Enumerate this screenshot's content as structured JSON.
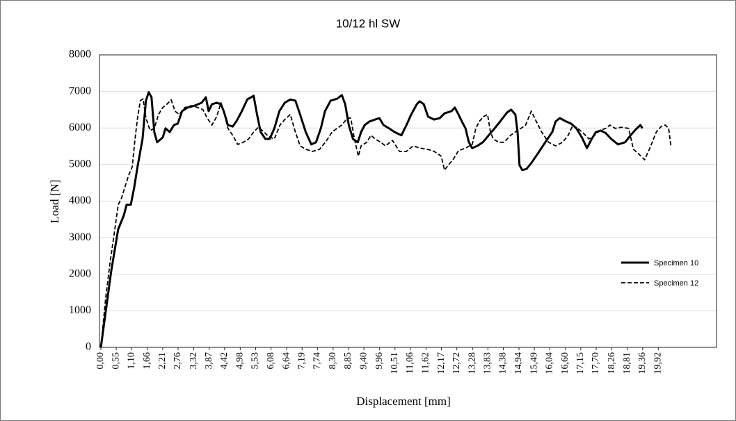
{
  "chart_data": {
    "type": "line",
    "title": "10/12 hl SW",
    "x_label": "Displacement [mm]",
    "y_label": "Load [N]",
    "xlim": [
      0,
      22
    ],
    "ylim": [
      0,
      8000
    ],
    "yticks": [
      0,
      1000,
      2000,
      3000,
      4000,
      5000,
      6000,
      7000,
      8000
    ],
    "xticks": [
      {
        "value": 0,
        "label": "0,00"
      },
      {
        "value": 0.55,
        "label": "0,55"
      },
      {
        "value": 1.1,
        "label": "1,10"
      },
      {
        "value": 1.66,
        "label": "1,66"
      },
      {
        "value": 2.21,
        "label": "2,21"
      },
      {
        "value": 2.76,
        "label": "2,76"
      },
      {
        "value": 3.32,
        "label": "3,32"
      },
      {
        "value": 3.87,
        "label": "3,87"
      },
      {
        "value": 4.42,
        "label": "4,42"
      },
      {
        "value": 4.98,
        "label": "4,98"
      },
      {
        "value": 5.53,
        "label": "5,53"
      },
      {
        "value": 6.08,
        "label": "6,08"
      },
      {
        "value": 6.64,
        "label": "6,64"
      },
      {
        "value": 7.19,
        "label": "7,19"
      },
      {
        "value": 7.74,
        "label": "7,74"
      },
      {
        "value": 8.3,
        "label": "8,30"
      },
      {
        "value": 8.85,
        "label": "8,85"
      },
      {
        "value": 9.4,
        "label": "9,40"
      },
      {
        "value": 9.96,
        "label": "9,96"
      },
      {
        "value": 10.51,
        "label": "10,51"
      },
      {
        "value": 11.06,
        "label": "11,06"
      },
      {
        "value": 11.62,
        "label": "11,62"
      },
      {
        "value": 12.17,
        "label": "12,17"
      },
      {
        "value": 12.72,
        "label": "12,72"
      },
      {
        "value": 13.28,
        "label": "13,28"
      },
      {
        "value": 13.83,
        "label": "13,83"
      },
      {
        "value": 14.38,
        "label": "14,38"
      },
      {
        "value": 14.94,
        "label": "14,94"
      },
      {
        "value": 15.49,
        "label": "15,49"
      },
      {
        "value": 16.04,
        "label": "16,04"
      },
      {
        "value": 16.6,
        "label": "16,60"
      },
      {
        "value": 17.15,
        "label": "17,15"
      },
      {
        "value": 17.7,
        "label": "17,70"
      },
      {
        "value": 18.26,
        "label": "18,26"
      },
      {
        "value": 18.81,
        "label": "18,81"
      },
      {
        "value": 19.36,
        "label": "19,36"
      },
      {
        "value": 19.92,
        "label": "19,92"
      }
    ],
    "grid": true,
    "legend_position": "right",
    "series": [
      {
        "name": "Specimen 10",
        "color": "#000000",
        "line_style": "solid",
        "x": [
          0,
          0.37,
          0.62,
          0.82,
          0.92,
          1.07,
          1.19,
          1.31,
          1.49,
          1.61,
          1.71,
          1.81,
          1.91,
          2.01,
          2.21,
          2.31,
          2.46,
          2.61,
          2.75,
          2.9,
          3.1,
          3.35,
          3.6,
          3.75,
          3.85,
          3.97,
          4.14,
          4.29,
          4.39,
          4.54,
          4.71,
          4.84,
          5.04,
          5.23,
          5.46,
          5.58,
          5.71,
          5.88,
          6.03,
          6.2,
          6.38,
          6.57,
          6.77,
          6.95,
          7.12,
          7.32,
          7.52,
          7.69,
          7.86,
          8.01,
          8.21,
          8.44,
          8.61,
          8.73,
          8.86,
          9.01,
          9.18,
          9.3,
          9.43,
          9.6,
          9.8,
          9.95,
          10.1,
          10.3,
          10.49,
          10.74,
          10.92,
          11.09,
          11.29,
          11.39,
          11.54,
          11.69,
          11.91,
          12.11,
          12.28,
          12.53,
          12.65,
          12.78,
          12.9,
          13.03,
          13.15,
          13.27,
          13.45,
          13.65,
          13.89,
          14.07,
          14.27,
          14.51,
          14.66,
          14.81,
          14.89,
          14.96,
          15.06,
          15.21,
          15.38,
          15.63,
          15.88,
          16.13,
          16.25,
          16.4,
          16.62,
          16.8,
          16.99,
          17.19,
          17.37,
          17.54,
          17.69,
          17.86,
          18.04,
          18.24,
          18.48,
          18.73,
          18.93,
          19.1,
          19.28,
          19.35
        ],
        "values": [
          0,
          2090,
          3230,
          3610,
          3900,
          3900,
          4370,
          4940,
          5700,
          6750,
          6980,
          6840,
          5890,
          5610,
          5740,
          5990,
          5890,
          6080,
          6120,
          6460,
          6560,
          6610,
          6690,
          6840,
          6460,
          6650,
          6690,
          6650,
          6460,
          6080,
          6040,
          6180,
          6460,
          6780,
          6880,
          6370,
          5890,
          5700,
          5700,
          5990,
          6460,
          6690,
          6780,
          6750,
          6370,
          5890,
          5550,
          5610,
          5990,
          6460,
          6750,
          6800,
          6900,
          6650,
          6080,
          5700,
          5610,
          5890,
          6080,
          6180,
          6230,
          6270,
          6080,
          5990,
          5890,
          5800,
          6080,
          6370,
          6650,
          6730,
          6650,
          6310,
          6230,
          6270,
          6400,
          6460,
          6560,
          6370,
          6180,
          5990,
          5610,
          5450,
          5510,
          5610,
          5830,
          5990,
          6180,
          6420,
          6500,
          6370,
          5890,
          4980,
          4850,
          4880,
          5040,
          5320,
          5610,
          5890,
          6180,
          6270,
          6180,
          6120,
          5990,
          5740,
          5450,
          5700,
          5890,
          5930,
          5860,
          5700,
          5550,
          5610,
          5800,
          5950,
          6080,
          5990
        ]
      },
      {
        "name": "Specimen 12",
        "color": "#000000",
        "line_style": "dashed",
        "x": [
          0,
          0.17,
          0.32,
          0.5,
          0.62,
          0.74,
          0.87,
          0.99,
          1.12,
          1.22,
          1.31,
          1.41,
          1.51,
          1.61,
          1.76,
          1.91,
          2.06,
          2.21,
          2.36,
          2.51,
          2.65,
          2.8,
          3.0,
          3.23,
          3.47,
          3.65,
          3.8,
          3.97,
          4.14,
          4.29,
          4.42,
          4.54,
          4.71,
          4.89,
          5.09,
          5.28,
          5.46,
          5.63,
          5.83,
          6.0,
          6.2,
          6.4,
          6.57,
          6.77,
          6.95,
          7.12,
          7.32,
          7.57,
          7.82,
          8.06,
          8.26,
          8.44,
          8.61,
          8.81,
          8.93,
          9.06,
          9.2,
          9.3,
          9.5,
          9.65,
          9.8,
          10.0,
          10.17,
          10.42,
          10.67,
          10.92,
          11.16,
          11.41,
          11.66,
          11.91,
          12.16,
          12.28,
          12.41,
          12.58,
          12.78,
          13.03,
          13.27,
          13.4,
          13.52,
          13.67,
          13.82,
          13.92,
          14.02,
          14.22,
          14.41,
          14.64,
          14.81,
          15.01,
          15.18,
          15.38,
          15.56,
          15.75,
          16.0,
          16.25,
          16.5,
          16.7,
          16.87,
          17.04,
          17.24,
          17.44,
          17.64,
          17.84,
          18.04,
          18.19,
          18.38,
          18.61,
          18.86,
          19.03,
          19.23,
          19.43,
          19.6,
          19.85,
          20.02,
          20.17,
          20.29,
          20.37
        ],
        "values": [
          0,
          1330,
          2280,
          3230,
          3900,
          4090,
          4410,
          4700,
          4940,
          5700,
          6270,
          6750,
          6800,
          6270,
          5930,
          5990,
          6370,
          6560,
          6650,
          6770,
          6460,
          6370,
          6560,
          6610,
          6560,
          6500,
          6270,
          6080,
          6310,
          6690,
          6370,
          5990,
          5800,
          5550,
          5610,
          5700,
          5890,
          6020,
          5890,
          5760,
          5700,
          6080,
          6230,
          6370,
          5890,
          5510,
          5420,
          5360,
          5420,
          5650,
          5890,
          5990,
          6080,
          6270,
          6270,
          5700,
          5230,
          5510,
          5610,
          5800,
          5700,
          5610,
          5510,
          5660,
          5360,
          5360,
          5510,
          5450,
          5420,
          5360,
          5230,
          4850,
          4980,
          5130,
          5380,
          5450,
          5550,
          5990,
          6180,
          6310,
          6370,
          5890,
          5700,
          5610,
          5610,
          5800,
          5890,
          5990,
          6080,
          6460,
          6180,
          5890,
          5610,
          5510,
          5610,
          5800,
          6080,
          5990,
          5860,
          5700,
          5800,
          5930,
          5990,
          6080,
          5990,
          6020,
          5990,
          5420,
          5280,
          5130,
          5420,
          5890,
          6040,
          6080,
          5990,
          5510
        ]
      }
    ]
  }
}
